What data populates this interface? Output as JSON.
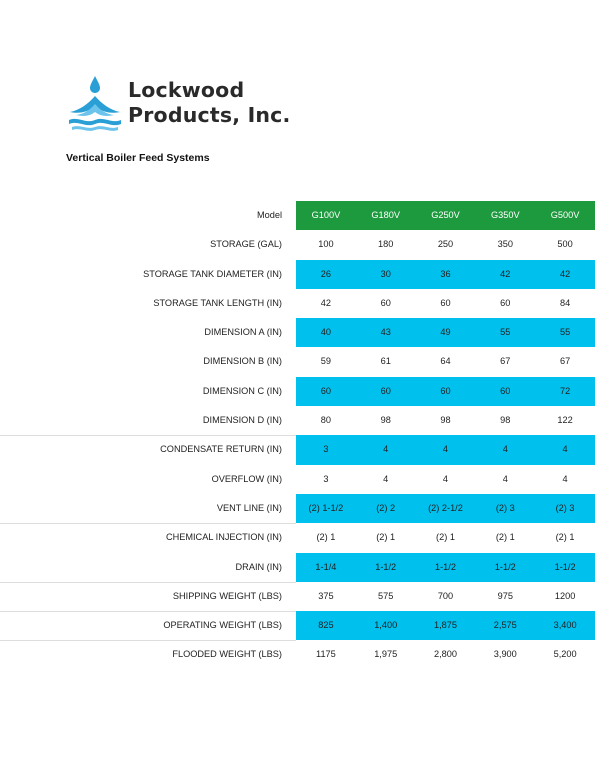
{
  "brand": {
    "line1": "Lockwood",
    "line2": "Products, Inc."
  },
  "colors": {
    "header": "#1e9a3e",
    "stripe": "#00c0ee",
    "logo_blue": "#2a9fd6"
  },
  "document": {
    "subtitle": "Vertical Boiler Feed Systems"
  },
  "table": {
    "header": {
      "label": "Model",
      "models": [
        "G100V",
        "G180V",
        "G250V",
        "G350V",
        "G500V"
      ]
    },
    "rows": [
      {
        "label": "STORAGE (GAL)",
        "values": [
          "100",
          "180",
          "250",
          "350",
          "500"
        ]
      },
      {
        "label": "STORAGE TANK DIAMETER (IN)",
        "values": [
          "26",
          "30",
          "36",
          "42",
          "42"
        ]
      },
      {
        "label": "STORAGE TANK LENGTH (IN)",
        "values": [
          "42",
          "60",
          "60",
          "60",
          "84"
        ]
      },
      {
        "label": "DIMENSION A (IN)",
        "values": [
          "40",
          "43",
          "49",
          "55",
          "55"
        ]
      },
      {
        "label": "DIMENSION B (IN)",
        "values": [
          "59",
          "61",
          "64",
          "67",
          "67"
        ]
      },
      {
        "label": "DIMENSION C (IN)",
        "values": [
          "60",
          "60",
          "60",
          "60",
          "72"
        ]
      },
      {
        "label": "DIMENSION D (IN)",
        "values": [
          "80",
          "98",
          "98",
          "98",
          "122"
        ]
      },
      {
        "label": "CONDENSATE RETURN (IN)",
        "values": [
          "3",
          "4",
          "4",
          "4",
          "4"
        ]
      },
      {
        "label": "OVERFLOW (IN)",
        "values": [
          "3",
          "4",
          "4",
          "4",
          "4"
        ]
      },
      {
        "label": "VENT LINE (IN)",
        "values": [
          "(2) 1-1/2",
          "(2) 2",
          "(2) 2-1/2",
          "(2) 3",
          "(2) 3"
        ]
      },
      {
        "label": "CHEMICAL INJECTION (IN)",
        "values": [
          "(2) 1",
          "(2) 1",
          "(2) 1",
          "(2) 1",
          "(2) 1"
        ]
      },
      {
        "label": "DRAIN (IN)",
        "values": [
          "1-1/4",
          "1-1/2",
          "1-1/2",
          "1-1/2",
          "1-1/2"
        ]
      },
      {
        "label": "SHIPPING WEIGHT (LBS)",
        "values": [
          "375",
          "575",
          "700",
          "975",
          "1200"
        ]
      },
      {
        "label": "OPERATING WEIGHT (LBS)",
        "values": [
          "825",
          "1,400",
          "1,875",
          "2,575",
          "3,400"
        ]
      },
      {
        "label": "FLOODED WEIGHT (LBS)",
        "values": [
          "1175",
          "1,975",
          "2,800",
          "3,900",
          "5,200"
        ]
      }
    ]
  }
}
